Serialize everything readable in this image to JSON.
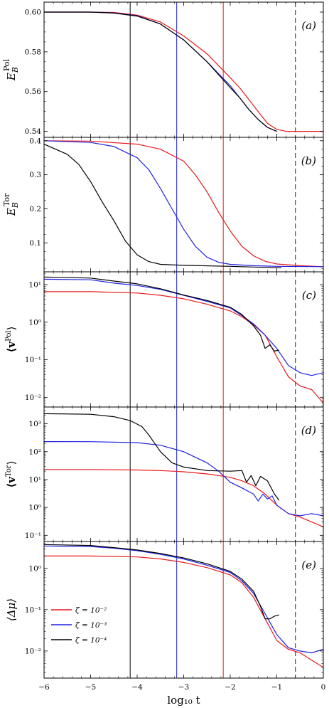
{
  "figure": {
    "xlabel": "log₁₀ t",
    "xlim": [
      -6,
      0
    ],
    "xticks": [
      "−6",
      "−5",
      "−4",
      "−3",
      "−2",
      "−1",
      "0"
    ]
  },
  "colors": {
    "red": "#e8191c",
    "blue": "#1f22e0",
    "black": "#000000",
    "dashed": "#555555"
  },
  "legend": {
    "entries": [
      {
        "label": "ζ = 10⁻²",
        "color": "#e8191c"
      },
      {
        "label": "ζ = 10⁻³",
        "color": "#1f22e0"
      },
      {
        "label": "ζ = 10⁻⁴",
        "color": "#000000"
      }
    ]
  },
  "chart_data": [
    {
      "type": "line",
      "panel_label": "(a)",
      "ylabel": "E_B^Pol",
      "yscale": "linear",
      "ylim": [
        0.537,
        0.605
      ],
      "yticks": [
        0.54,
        0.56,
        0.58,
        0.6
      ],
      "ytick_labels": [
        "0.54",
        "0.56",
        "0.58",
        "0.60"
      ],
      "vlines": [
        {
          "x": -4.15,
          "color": "#000000"
        },
        {
          "x": -3.15,
          "color": "#1f22e0"
        },
        {
          "x": -2.15,
          "color": "#e8191c"
        }
      ],
      "vline_dashed": {
        "x": -0.6
      },
      "series": [
        {
          "name": "ζ = 10⁻²",
          "color": "#e8191c",
          "x": [
            -6,
            -5,
            -4.5,
            -4,
            -3.5,
            -3,
            -2.5,
            -2,
            -1.8,
            -1.6,
            -1.4,
            -1.2,
            -1,
            -0.8,
            -0.5,
            0
          ],
          "y": [
            0.6,
            0.6,
            0.5998,
            0.5985,
            0.595,
            0.588,
            0.579,
            0.567,
            0.562,
            0.556,
            0.55,
            0.544,
            0.541,
            0.54,
            0.54,
            0.54
          ]
        },
        {
          "name": "ζ = 10⁻³",
          "color": "#1f22e0",
          "x": [
            -6,
            -5,
            -4.5,
            -4,
            -3.5,
            -3,
            -2.5,
            -2,
            -1.8,
            -1.6,
            -1.4,
            -1.2,
            -1
          ],
          "y": [
            0.6,
            0.6,
            0.5996,
            0.5982,
            0.594,
            0.586,
            0.575,
            0.563,
            0.557,
            0.551,
            0.546,
            0.542,
            0.54
          ]
        },
        {
          "name": "ζ = 10⁻⁴",
          "color": "#000000",
          "x": [
            -6,
            -5,
            -4.5,
            -4,
            -3.5,
            -3,
            -2.5,
            -2,
            -1.8,
            -1.6,
            -1.4,
            -1.2,
            -1
          ],
          "y": [
            0.6,
            0.6,
            0.5995,
            0.598,
            0.594,
            0.586,
            0.575,
            0.562,
            0.557,
            0.551,
            0.546,
            0.542,
            0.54
          ]
        }
      ]
    },
    {
      "type": "line",
      "panel_label": "(b)",
      "ylabel": "E_B^Tor",
      "yscale": "linear",
      "ylim": [
        0.015,
        0.41
      ],
      "yticks": [
        0.1,
        0.2,
        0.3,
        0.4
      ],
      "ytick_labels": [
        "0.1",
        "0.2",
        "0.3",
        "0.4"
      ],
      "vlines": [
        {
          "x": -4.15,
          "color": "#000000"
        },
        {
          "x": -3.15,
          "color": "#1f22e0"
        },
        {
          "x": -2.15,
          "color": "#e8191c"
        }
      ],
      "vline_dashed": {
        "x": -0.6
      },
      "series": [
        {
          "name": "ζ = 10⁻²",
          "color": "#e8191c",
          "x": [
            -6,
            -5,
            -4,
            -3.5,
            -3,
            -2.75,
            -2.5,
            -2.25,
            -2,
            -1.75,
            -1.5,
            -1.25,
            -1,
            -0.5,
            0
          ],
          "y": [
            0.4,
            0.399,
            0.39,
            0.375,
            0.34,
            0.3,
            0.25,
            0.19,
            0.135,
            0.09,
            0.062,
            0.046,
            0.038,
            0.033,
            0.03
          ]
        },
        {
          "name": "ζ = 10⁻³",
          "color": "#1f22e0",
          "x": [
            -6,
            -5,
            -4.5,
            -4,
            -3.75,
            -3.5,
            -3.25,
            -3,
            -2.75,
            -2.5,
            -2.25,
            -2,
            -1.5,
            -1,
            0
          ],
          "y": [
            0.4,
            0.395,
            0.383,
            0.35,
            0.315,
            0.26,
            0.2,
            0.14,
            0.09,
            0.058,
            0.043,
            0.037,
            0.033,
            0.031,
            0.03
          ]
        },
        {
          "name": "ζ = 10⁻⁴",
          "color": "#000000",
          "x": [
            -6,
            -5.5,
            -5.25,
            -5,
            -4.75,
            -4.5,
            -4.25,
            -4,
            -3.75,
            -3.5,
            -3,
            -2,
            -1.5,
            -0.9
          ],
          "y": [
            0.39,
            0.36,
            0.33,
            0.28,
            0.22,
            0.165,
            0.105,
            0.065,
            0.045,
            0.037,
            0.034,
            0.031,
            0.029,
            0.027
          ]
        }
      ]
    },
    {
      "type": "line",
      "panel_label": "(c)",
      "ylabel": "⟨v^Pol⟩",
      "yscale": "log",
      "ylim": [
        0.0055,
        22
      ],
      "yticks": [
        0.01,
        0.1,
        1,
        10
      ],
      "ytick_labels": [
        "10⁻²",
        "10⁻¹",
        "10⁰",
        "10¹"
      ],
      "vlines": [
        {
          "x": -4.15,
          "color": "#000000"
        },
        {
          "x": -3.15,
          "color": "#1f22e0"
        },
        {
          "x": -2.15,
          "color": "#e8191c"
        }
      ],
      "vline_dashed": {
        "x": -0.6
      },
      "series": [
        {
          "name": "ζ = 10⁻²",
          "color": "#e8191c",
          "x": [
            -6,
            -5,
            -4,
            -3.5,
            -3,
            -2.5,
            -2,
            -1.75,
            -1.5,
            -1.25,
            -1,
            -0.75,
            -0.5,
            -0.25,
            0
          ],
          "y": [
            6.5,
            6.5,
            6.0,
            5.2,
            4.2,
            3.0,
            2.0,
            1.4,
            0.85,
            0.45,
            0.12,
            0.035,
            0.02,
            0.016,
            0.007
          ]
        },
        {
          "name": "ζ = 10⁻³",
          "color": "#1f22e0",
          "x": [
            -6,
            -5,
            -4.5,
            -4,
            -3.5,
            -3,
            -2.5,
            -2,
            -1.75,
            -1.5,
            -1.25,
            -1,
            -0.75,
            -0.5,
            -0.25,
            0
          ],
          "y": [
            14,
            13.5,
            11,
            9.5,
            7.5,
            5.2,
            3.6,
            2.4,
            1.5,
            0.9,
            0.45,
            0.2,
            0.07,
            0.045,
            0.038,
            0.045
          ]
        },
        {
          "name": "ζ = 10⁻⁴",
          "color": "#000000",
          "x": [
            -6,
            -5,
            -4.5,
            -4,
            -3.5,
            -3,
            -2.5,
            -2,
            -1.75,
            -1.5,
            -1.35,
            -1.25,
            -1.15,
            -1.05,
            -0.95
          ],
          "y": [
            16,
            15,
            12.5,
            10.5,
            7.8,
            5.3,
            3.8,
            2.5,
            1.6,
            0.8,
            0.45,
            0.2,
            0.25,
            0.17,
            0.18
          ]
        }
      ]
    },
    {
      "type": "line",
      "panel_label": "(d)",
      "ylabel": "⟨v^Tor⟩",
      "yscale": "log",
      "ylim": [
        0.06,
        4000
      ],
      "yticks": [
        0.1,
        1,
        10,
        100,
        1000
      ],
      "ytick_labels": [
        "10⁻¹",
        "10⁰",
        "10¹",
        "10²",
        "10³"
      ],
      "vlines": [
        {
          "x": -4.15,
          "color": "#000000"
        },
        {
          "x": -3.15,
          "color": "#1f22e0"
        },
        {
          "x": -2.15,
          "color": "#e8191c"
        }
      ],
      "vline_dashed": {
        "x": -0.6
      },
      "series": [
        {
          "name": "ζ = 10⁻²",
          "color": "#e8191c",
          "x": [
            -6,
            -5,
            -4,
            -3.5,
            -3,
            -2.5,
            -2,
            -1.75,
            -1.5,
            -1.25,
            -1,
            -0.75,
            -0.5,
            -0.25,
            0
          ],
          "y": [
            23,
            23,
            22,
            21,
            19,
            16,
            12,
            9.0,
            6.0,
            3.0,
            1.2,
            0.6,
            0.45,
            0.3,
            0.2
          ]
        },
        {
          "name": "ζ = 10⁻³",
          "color": "#1f22e0",
          "x": [
            -6,
            -5,
            -4,
            -3.5,
            -3,
            -2.5,
            -2.25,
            -2,
            -1.75,
            -1.5,
            -1.4,
            -1.3,
            -1.2,
            -1.1,
            -1,
            -0.75,
            -0.5,
            -0.25,
            0
          ],
          "y": [
            230,
            228,
            210,
            170,
            100,
            40,
            20,
            8.0,
            5.0,
            3.0,
            1.7,
            3.0,
            2.0,
            2.6,
            1.2,
            0.6,
            0.5,
            0.6,
            0.5
          ]
        },
        {
          "name": "ζ = 10⁻⁴",
          "color": "#000000",
          "x": [
            -6,
            -5,
            -4.5,
            -4.15,
            -3.9,
            -3.75,
            -3.5,
            -3.25,
            -3,
            -2.5,
            -2,
            -1.75,
            -1.65,
            -1.55,
            -1.45,
            -1.35,
            -1.2,
            -1.05,
            -0.95
          ],
          "y": [
            2300,
            2200,
            1800,
            1300,
            800,
            400,
            100,
            40,
            28,
            21,
            20,
            21,
            8.0,
            14,
            6.0,
            13,
            9.0,
            3.0,
            1.8
          ]
        }
      ]
    },
    {
      "type": "line",
      "panel_label": "(e)",
      "ylabel": "⟨Δμ⟩",
      "yscale": "log",
      "ylim": [
        0.0022,
        4.5
      ],
      "yticks": [
        0.01,
        0.1,
        1
      ],
      "ytick_labels": [
        "10⁻²",
        "10⁻¹",
        "10⁰"
      ],
      "vlines": [
        {
          "x": -4.15,
          "color": "#000000"
        },
        {
          "x": -3.15,
          "color": "#1f22e0"
        },
        {
          "x": -2.15,
          "color": "#e8191c"
        }
      ],
      "vline_dashed": {
        "x": -0.6
      },
      "series": [
        {
          "name": "ζ = 10⁻²",
          "color": "#e8191c",
          "x": [
            -6,
            -5,
            -4,
            -3.5,
            -3,
            -2.5,
            -2,
            -1.75,
            -1.5,
            -1.25,
            -1,
            -0.75,
            -0.5,
            -0.25,
            0
          ],
          "y": [
            2.0,
            2.0,
            1.9,
            1.7,
            1.4,
            1.05,
            0.7,
            0.45,
            0.2,
            0.06,
            0.018,
            0.011,
            0.009,
            0.006,
            0.004
          ]
        },
        {
          "name": "ζ = 10⁻³",
          "color": "#1f22e0",
          "x": [
            -6,
            -5,
            -4.5,
            -4,
            -3.5,
            -3,
            -2.5,
            -2,
            -1.75,
            -1.5,
            -1.25,
            -1,
            -0.75,
            -0.5,
            -0.25,
            0
          ],
          "y": [
            3.5,
            3.4,
            3.1,
            2.7,
            2.2,
            1.7,
            1.2,
            0.8,
            0.5,
            0.25,
            0.08,
            0.025,
            0.012,
            0.01,
            0.009,
            0.011
          ]
        },
        {
          "name": "ζ = 10⁻⁴",
          "color": "#000000",
          "x": [
            -6,
            -5,
            -4.5,
            -4,
            -3.5,
            -3,
            -2.5,
            -2,
            -1.75,
            -1.5,
            -1.35,
            -1.25,
            -1.15,
            -1.05,
            -0.95
          ],
          "y": [
            3.8,
            3.6,
            3.2,
            2.8,
            2.3,
            1.8,
            1.3,
            0.85,
            0.55,
            0.28,
            0.12,
            0.06,
            0.06,
            0.07,
            0.075
          ]
        }
      ]
    }
  ]
}
